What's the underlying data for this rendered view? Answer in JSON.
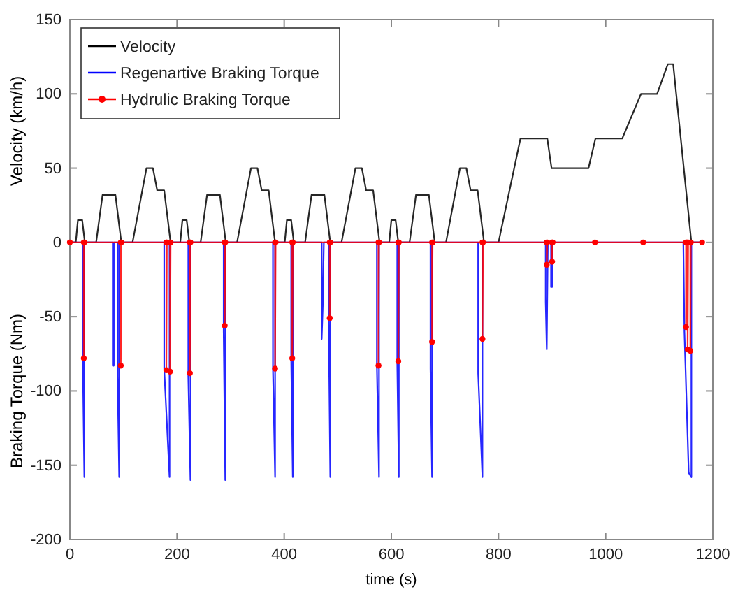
{
  "chart_data": {
    "type": "line",
    "xlabel": "time (s)",
    "ylabel": "Velocity (km/h)",
    "annotations": [
      "Braking Torque (Nm)"
    ],
    "xlim": [
      0,
      1200
    ],
    "xticks": [
      0,
      200,
      400,
      600,
      800,
      1000,
      1200
    ],
    "ylim": [
      -200,
      150
    ],
    "yticks": [
      -200,
      -150,
      -100,
      -50,
      0,
      50,
      100,
      150
    ],
    "grid": false,
    "legend": "top left",
    "series": [
      {
        "name": "Velocity",
        "color": "#000000",
        "marker": "none",
        "x": [
          0,
          11,
          15,
          23,
          28,
          49,
          61,
          85,
          96,
          117,
          143,
          155,
          163,
          176,
          188,
          195,
          206,
          210,
          218,
          223,
          244,
          256,
          280,
          291,
          312,
          338,
          350,
          358,
          371,
          383,
          390,
          401,
          405,
          413,
          418,
          439,
          451,
          475,
          486,
          507,
          533,
          545,
          553,
          566,
          578,
          585,
          596,
          600,
          608,
          613,
          634,
          646,
          670,
          681,
          702,
          728,
          740,
          748,
          761,
          773,
          780,
          800,
          841,
          891,
          899,
          968,
          981,
          1031,
          1066,
          1096,
          1116,
          1126,
          1160,
          1180
        ],
        "values": [
          0,
          0,
          15,
          15,
          0,
          0,
          32,
          32,
          0,
          0,
          50,
          50,
          35,
          35,
          0,
          0,
          0,
          15,
          15,
          0,
          0,
          32,
          32,
          0,
          0,
          50,
          50,
          35,
          35,
          0,
          0,
          0,
          15,
          15,
          0,
          0,
          32,
          32,
          0,
          0,
          50,
          50,
          35,
          35,
          0,
          0,
          0,
          15,
          15,
          0,
          0,
          32,
          32,
          0,
          0,
          50,
          50,
          35,
          35,
          0,
          0,
          0,
          70,
          70,
          50,
          50,
          70,
          70,
          100,
          100,
          120,
          120,
          0,
          0
        ]
      },
      {
        "name": "Regenartive Braking Torque",
        "color": "#0000ff",
        "marker": "none",
        "x": [
          0,
          24,
          24,
          27,
          27,
          80,
          80,
          82,
          82,
          89,
          89,
          92,
          92,
          176,
          176,
          186,
          186,
          221,
          221,
          225,
          225,
          287,
          287,
          290,
          290,
          379,
          379,
          383,
          383,
          413,
          413,
          416,
          416,
          470,
          470,
          472,
          474,
          483,
          483,
          486,
          486,
          573,
          573,
          577,
          577,
          611,
          611,
          614,
          614,
          673,
          673,
          676,
          676,
          762,
          762,
          770,
          770,
          888,
          888,
          890,
          892,
          898,
          898,
          900,
          900,
          1145,
          1147,
          1155,
          1160,
          1160,
          1180
        ],
        "values": [
          0,
          0,
          -75,
          -158,
          0,
          0,
          -83,
          -83,
          0,
          0,
          -90,
          -158,
          0,
          0,
          -85,
          -158,
          0,
          0,
          -90,
          -160,
          0,
          0,
          -60,
          -160,
          0,
          0,
          -85,
          -158,
          0,
          0,
          -78,
          -158,
          0,
          0,
          -65,
          -43,
          0,
          0,
          -52,
          -158,
          0,
          0,
          -83,
          -158,
          0,
          0,
          -80,
          -158,
          0,
          0,
          -85,
          -158,
          0,
          0,
          -88,
          -158,
          0,
          0,
          -40,
          -72,
          0,
          0,
          -30,
          -30,
          0,
          0,
          -60,
          -155,
          -158,
          0,
          0
        ]
      },
      {
        "name": "Hydrulic Braking Torque",
        "color": "#ff0000",
        "marker": "circle",
        "x": [
          0,
          26,
          26,
          27,
          95,
          95,
          96,
          180,
          180,
          181,
          187,
          187,
          188,
          224,
          224,
          225,
          289,
          289,
          290,
          383,
          383,
          384,
          415,
          415,
          416,
          485,
          485,
          486,
          576,
          576,
          577,
          613,
          613,
          614,
          676,
          676,
          677,
          770,
          770,
          771,
          890,
          890,
          891,
          900,
          900,
          901,
          980,
          1070,
          1150,
          1150,
          1151,
          1153,
          1153,
          1154,
          1158,
          1158,
          1159,
          1180
        ],
        "values": [
          0,
          0,
          -78,
          0,
          0,
          -83,
          0,
          0,
          -86,
          0,
          0,
          -87,
          0,
          0,
          -88,
          0,
          0,
          -56,
          0,
          0,
          -85,
          0,
          0,
          -78,
          0,
          0,
          -51,
          0,
          0,
          -83,
          0,
          0,
          -80,
          0,
          0,
          -67,
          0,
          0,
          -65,
          0,
          0,
          -15,
          0,
          0,
          -13,
          0,
          0,
          0,
          0,
          -57,
          0,
          0,
          -72,
          0,
          0,
          -73,
          0,
          0
        ]
      }
    ]
  }
}
